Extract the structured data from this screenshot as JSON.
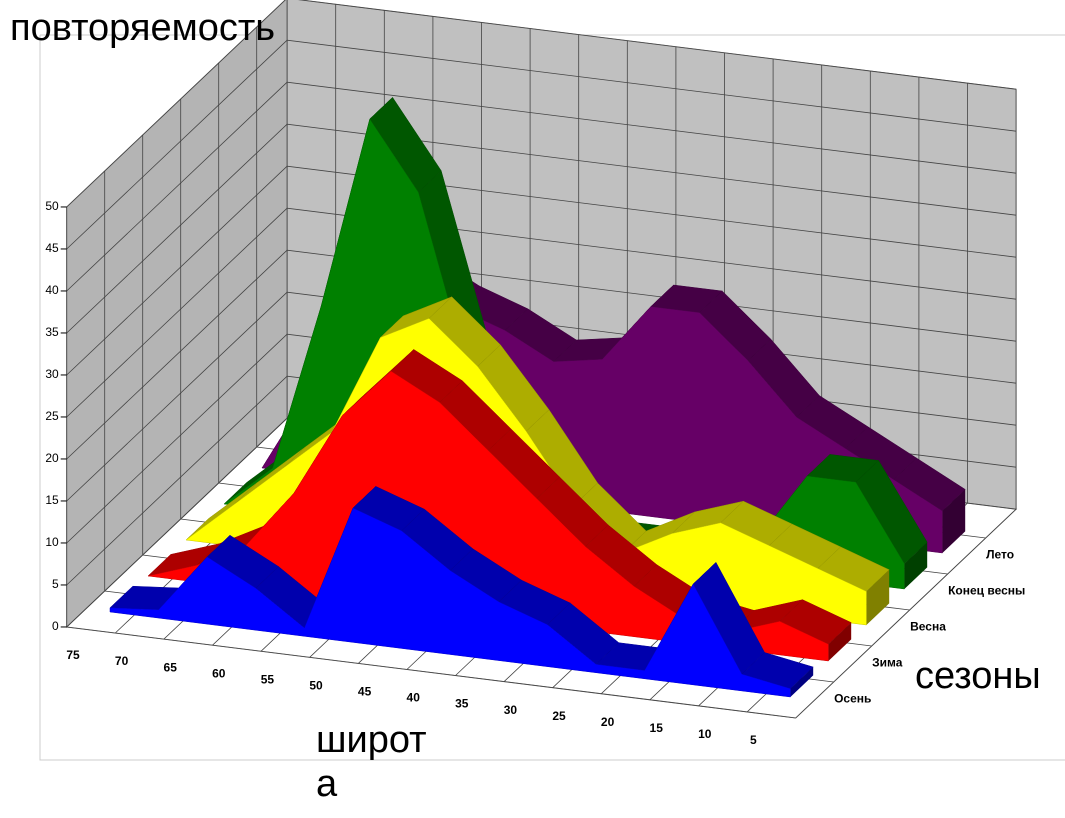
{
  "chart_data": {
    "type": "area3d",
    "y_label": "повторяемость",
    "x_label": "широта",
    "z_label": "сезоны",
    "categories": [
      "75",
      "70",
      "65",
      "60",
      "55",
      "50",
      "45",
      "40",
      "35",
      "30",
      "25",
      "20",
      "15",
      "10",
      "5"
    ],
    "series": [
      {
        "name": "Осень",
        "color": "#0000ff",
        "values": [
          0.5,
          1,
          8,
          5,
          1,
          16,
          14,
          10,
          7,
          5,
          1,
          1,
          12,
          2,
          1
        ]
      },
      {
        "name": "Зима",
        "color": "#ff0000",
        "values": [
          0,
          2,
          5,
          12,
          22,
          28,
          25,
          20,
          15,
          10,
          6,
          3,
          2,
          4,
          2
        ]
      },
      {
        "name": "Весна",
        "color": "#ffff00",
        "values": [
          0,
          5,
          10,
          15,
          27,
          30,
          25,
          18,
          10,
          5,
          8,
          10,
          8,
          6,
          4
        ]
      },
      {
        "name": "Конец весны",
        "color": "#008000",
        "values": [
          0,
          5,
          25,
          48,
          40,
          20,
          5,
          3,
          1,
          1,
          2,
          4,
          12,
          12,
          3
        ]
      },
      {
        "name": "Лето",
        "color": "#660066",
        "values": [
          0,
          10,
          20,
          25,
          22,
          20,
          17,
          18,
          25,
          25,
          20,
          14,
          11,
          8,
          5
        ]
      }
    ],
    "ylim": [
      0,
      50
    ],
    "yticks": [
      0,
      5,
      10,
      15,
      20,
      25,
      30,
      35,
      40,
      45,
      50
    ],
    "grid": true
  }
}
